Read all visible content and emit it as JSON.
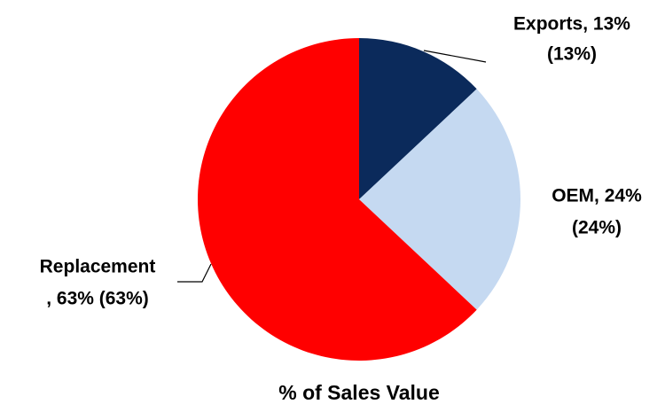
{
  "chart_data": {
    "type": "pie",
    "title": "% of Sales Value",
    "categories": [
      "Exports",
      "OEM",
      "Replacement"
    ],
    "values": [
      13,
      24,
      63
    ],
    "value_labels": [
      [
        "Exports, 13%",
        "(13%)"
      ],
      [
        "OEM, 24%",
        "(24%)"
      ],
      [
        "Replacement",
        ", 63% (63%)"
      ]
    ],
    "colors": [
      "#0b2a5b",
      "#c5d9f1",
      "#ff0000"
    ]
  }
}
